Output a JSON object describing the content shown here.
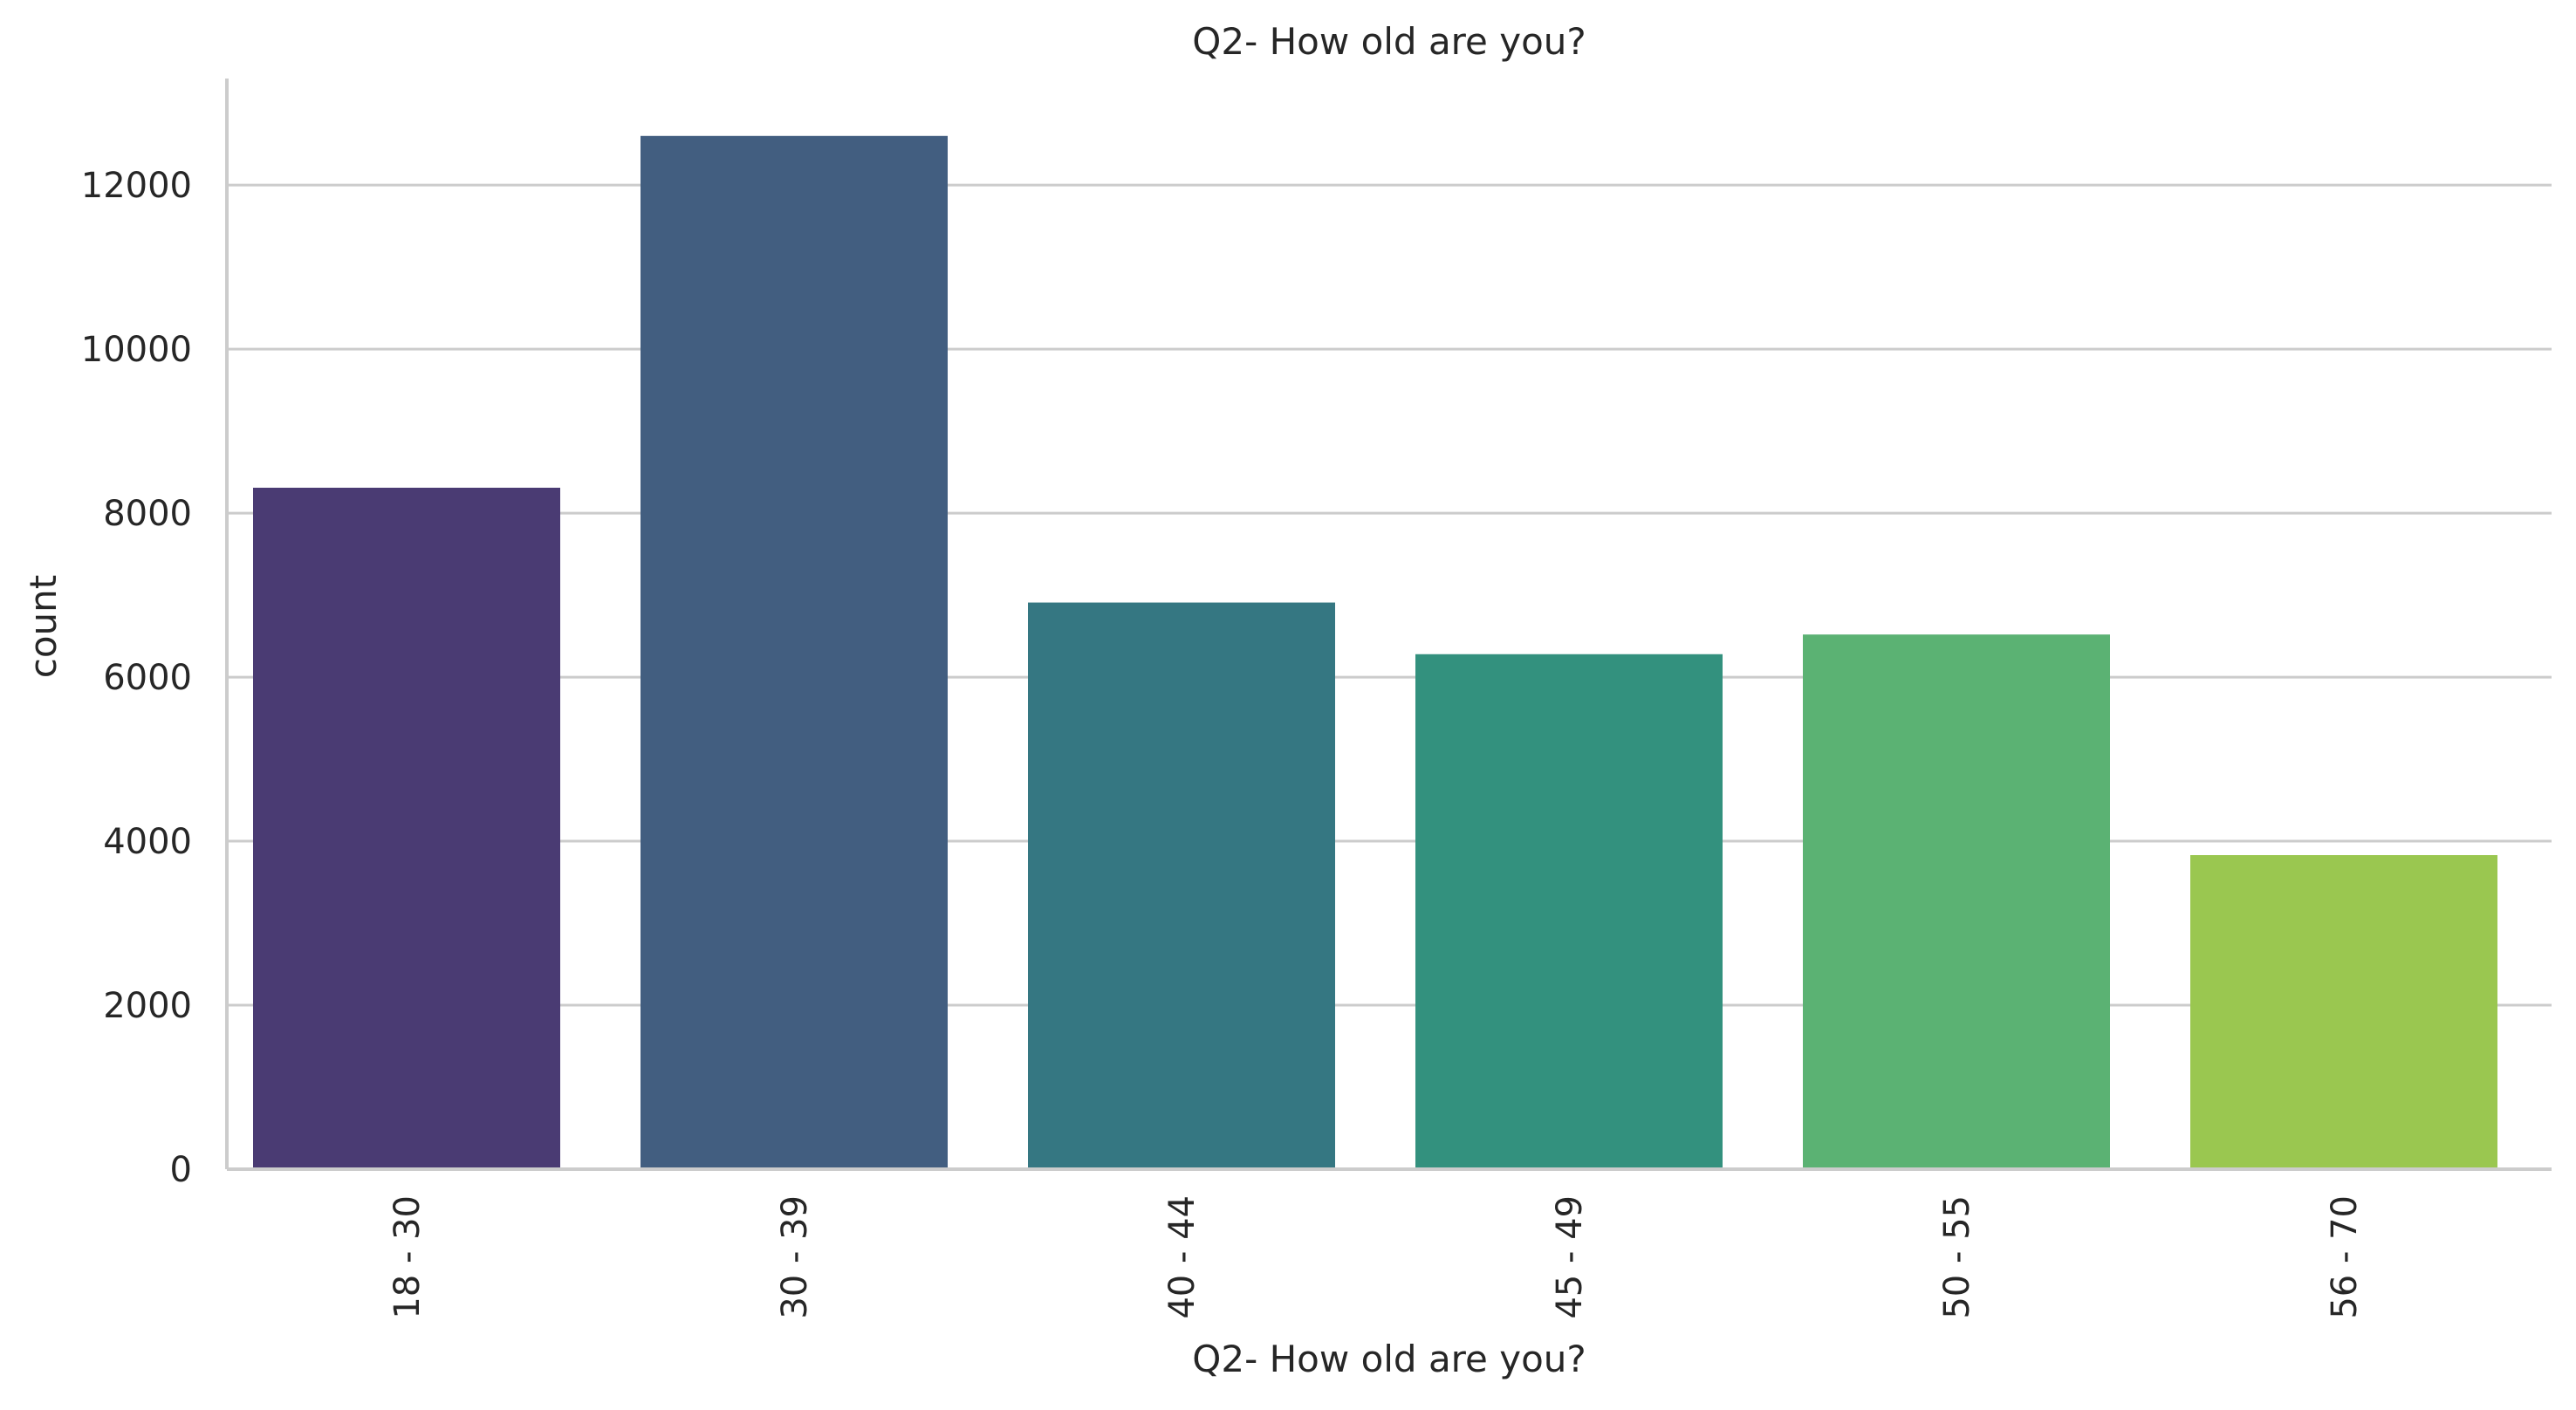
{
  "chart_data": {
    "type": "bar",
    "title": "Q2- How old are you?",
    "xlabel": "Q2- How old are you?",
    "ylabel": "count",
    "categories": [
      "18 - 30",
      "30 - 39",
      "40 - 44",
      "45 - 49",
      "50 - 55",
      "56 - 70"
    ],
    "values": [
      8310,
      12600,
      6910,
      6280,
      6520,
      3830
    ],
    "colors": [
      "#482475",
      "#414487",
      "#355f8d",
      "#2a788e",
      "#21918c",
      "#22a884"
    ],
    "bar_colors": [
      "#4a3b73",
      "#425e80",
      "#357782",
      "#33917e",
      "#5bb273",
      "#9ac750"
    ],
    "ylim": [
      0,
      13300
    ],
    "yticks": [
      0,
      2000,
      4000,
      6000,
      8000,
      10000,
      12000
    ],
    "ytick_labels": [
      "0",
      "2000",
      "4000",
      "6000",
      "8000",
      "10000",
      "12000"
    ],
    "grid": "horizontal",
    "legend": "none",
    "spines": "left-bottom"
  }
}
